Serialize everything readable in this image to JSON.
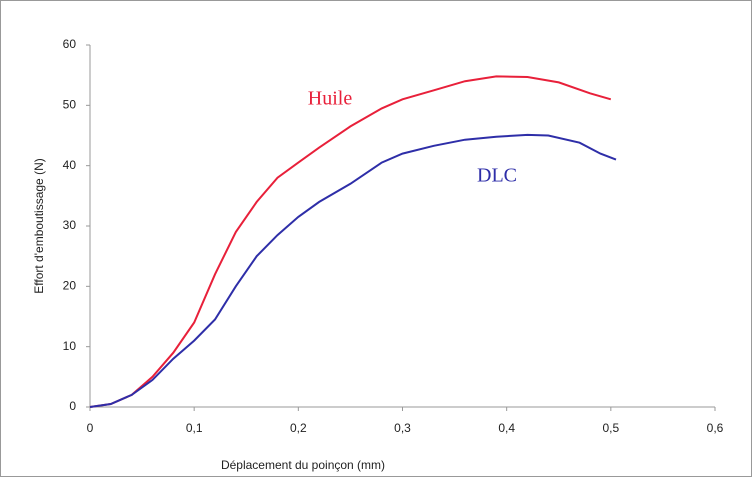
{
  "chart_data": {
    "type": "line",
    "xlabel": "Déplacement du poinçon (mm)",
    "ylabel": "Effort d'emboutissage (N)",
    "xlim": [
      0,
      0.6
    ],
    "xticks": [
      0,
      {
        "value": 0.1,
        "label": "0,1"
      },
      {
        "value": 0.2,
        "label": "0,2"
      },
      {
        "value": 0.3,
        "label": "0,3"
      },
      {
        "value": 0.4,
        "label": "0,4"
      },
      {
        "value": 0.5,
        "label": "0,5"
      },
      {
        "value": 0.6,
        "label": "0,6"
      }
    ],
    "ylim": [
      0,
      60
    ],
    "yticks": [
      0,
      10,
      20,
      30,
      40,
      50,
      60
    ],
    "grid": false,
    "series": [
      {
        "name": "Huile",
        "color": "#e8203a",
        "x": [
          0,
          0.02,
          0.04,
          0.06,
          0.08,
          0.1,
          0.12,
          0.14,
          0.16,
          0.18,
          0.2,
          0.22,
          0.25,
          0.28,
          0.3,
          0.33,
          0.36,
          0.39,
          0.42,
          0.45,
          0.48,
          0.5
        ],
        "values": [
          0,
          0.5,
          2,
          5,
          9,
          14,
          22,
          29,
          34,
          38,
          40.5,
          43,
          46.5,
          49.5,
          51,
          52.5,
          54,
          54.8,
          54.7,
          53.8,
          52,
          51
        ]
      },
      {
        "name": "DLC",
        "color": "#2e2ea8",
        "x": [
          0,
          0.02,
          0.04,
          0.06,
          0.08,
          0.1,
          0.12,
          0.14,
          0.16,
          0.18,
          0.2,
          0.22,
          0.25,
          0.28,
          0.3,
          0.33,
          0.36,
          0.39,
          0.42,
          0.44,
          0.47,
          0.49,
          0.505
        ],
        "values": [
          0,
          0.5,
          2,
          4.5,
          8,
          11,
          14.5,
          20,
          25,
          28.5,
          31.5,
          34,
          37,
          40.5,
          42,
          43.3,
          44.3,
          44.8,
          45.1,
          45,
          43.8,
          42,
          41
        ]
      }
    ]
  }
}
